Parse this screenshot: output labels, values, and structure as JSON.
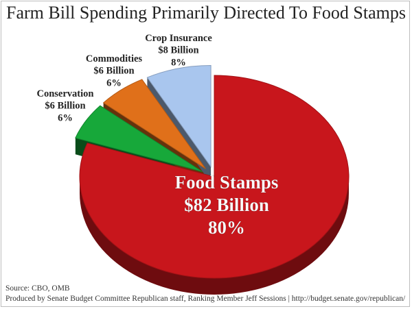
{
  "chart_data": {
    "type": "pie",
    "title": "Farm Bill Spending Primarily Directed To Food Stamps",
    "slices": [
      {
        "name": "Food Stamps",
        "amount": "$82 Billion",
        "value": 82,
        "percent": "80%",
        "color": "#c8161c"
      },
      {
        "name": "Conservation",
        "amount": "$6 Billion",
        "value": 6,
        "percent": "6%",
        "color": "#17a83a"
      },
      {
        "name": "Commodities",
        "amount": "$6 Billion",
        "value": 6,
        "percent": "6%",
        "color": "#e0701a"
      },
      {
        "name": "Crop Insurance",
        "amount": "$8 Billion",
        "value": 8,
        "percent": "8%",
        "color": "#a9c6ee"
      }
    ]
  },
  "footer": {
    "source": "Source: CBO, OMB",
    "produced": "Produced by Senate Budget Committee Republican staff, Ranking Member Jeff Sessions | http://budget.senate.gov/republican/"
  }
}
